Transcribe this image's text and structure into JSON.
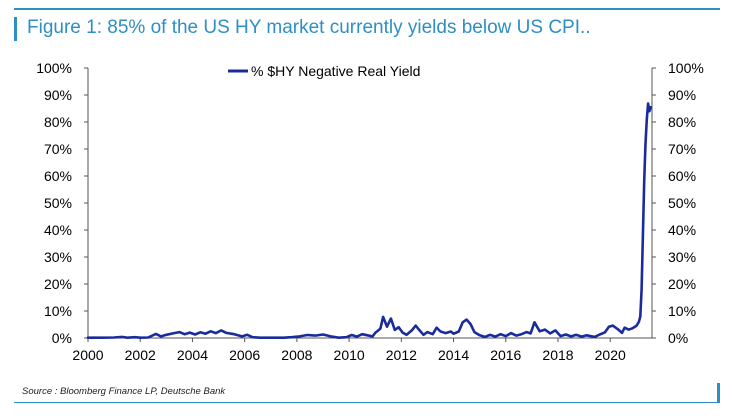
{
  "figure": {
    "title": "Figure 1: 85% of the US HY market currently yields below US CPI..",
    "source": "Source : Bloomberg Finance LP, Deutsche Bank"
  },
  "colors": {
    "accent": "#2e8fc4",
    "series": "#1a2c9c"
  },
  "chart_data": {
    "type": "line",
    "xlim": [
      2000,
      2021.6
    ],
    "ylim": [
      0,
      100
    ],
    "x_ticks": [
      2000,
      2002,
      2004,
      2006,
      2008,
      2010,
      2012,
      2014,
      2016,
      2018,
      2020
    ],
    "x_tick_labels": [
      "2000",
      "2002",
      "2004",
      "2006",
      "2008",
      "2010",
      "2012",
      "2014",
      "2016",
      "2018",
      "2020"
    ],
    "y_ticks": [
      0,
      10,
      20,
      30,
      40,
      50,
      60,
      70,
      80,
      90,
      100
    ],
    "y_tick_labels": [
      "0%",
      "10%",
      "20%",
      "30%",
      "40%",
      "50%",
      "60%",
      "70%",
      "80%",
      "90%",
      "100%"
    ],
    "y_axes": [
      "left",
      "right"
    ],
    "legend_position": "top-center",
    "grid": false,
    "series": [
      {
        "name": "% $HY Negative Real Yield",
        "points": [
          [
            2000.0,
            0.1
          ],
          [
            2000.5,
            0.1
          ],
          [
            2001.0,
            0.2
          ],
          [
            2001.3,
            0.4
          ],
          [
            2001.5,
            0.1
          ],
          [
            2001.8,
            0.3
          ],
          [
            2002.0,
            0.1
          ],
          [
            2002.3,
            0.2
          ],
          [
            2002.6,
            1.5
          ],
          [
            2002.8,
            0.6
          ],
          [
            2003.0,
            1.2
          ],
          [
            2003.3,
            1.8
          ],
          [
            2003.5,
            2.2
          ],
          [
            2003.7,
            1.4
          ],
          [
            2003.9,
            2.0
          ],
          [
            2004.1,
            1.3
          ],
          [
            2004.3,
            2.1
          ],
          [
            2004.5,
            1.6
          ],
          [
            2004.7,
            2.5
          ],
          [
            2004.9,
            1.8
          ],
          [
            2005.1,
            2.8
          ],
          [
            2005.3,
            1.9
          ],
          [
            2005.6,
            1.4
          ],
          [
            2005.9,
            0.6
          ],
          [
            2006.1,
            1.2
          ],
          [
            2006.3,
            0.3
          ],
          [
            2006.6,
            0.1
          ],
          [
            2007.0,
            0.1
          ],
          [
            2007.5,
            0.1
          ],
          [
            2007.8,
            0.3
          ],
          [
            2008.1,
            0.6
          ],
          [
            2008.4,
            1.1
          ],
          [
            2008.7,
            0.9
          ],
          [
            2009.0,
            1.3
          ],
          [
            2009.3,
            0.6
          ],
          [
            2009.6,
            0.1
          ],
          [
            2009.9,
            0.3
          ],
          [
            2010.1,
            1.1
          ],
          [
            2010.3,
            0.5
          ],
          [
            2010.5,
            1.4
          ],
          [
            2010.7,
            1.0
          ],
          [
            2010.9,
            0.6
          ],
          [
            2011.0,
            1.9
          ],
          [
            2011.2,
            3.5
          ],
          [
            2011.3,
            7.8
          ],
          [
            2011.45,
            4.2
          ],
          [
            2011.6,
            7.2
          ],
          [
            2011.75,
            3.0
          ],
          [
            2011.9,
            4.0
          ],
          [
            2012.05,
            2.0
          ],
          [
            2012.2,
            1.2
          ],
          [
            2012.4,
            2.8
          ],
          [
            2012.55,
            4.6
          ],
          [
            2012.7,
            2.8
          ],
          [
            2012.85,
            1.2
          ],
          [
            2013.0,
            2.2
          ],
          [
            2013.2,
            1.4
          ],
          [
            2013.35,
            3.8
          ],
          [
            2013.5,
            2.4
          ],
          [
            2013.7,
            1.8
          ],
          [
            2013.9,
            2.4
          ],
          [
            2014.0,
            1.6
          ],
          [
            2014.2,
            2.4
          ],
          [
            2014.35,
            5.8
          ],
          [
            2014.5,
            6.8
          ],
          [
            2014.65,
            5.2
          ],
          [
            2014.8,
            2.2
          ],
          [
            2015.0,
            1.0
          ],
          [
            2015.2,
            0.4
          ],
          [
            2015.4,
            1.2
          ],
          [
            2015.6,
            0.5
          ],
          [
            2015.8,
            1.4
          ],
          [
            2016.0,
            0.7
          ],
          [
            2016.2,
            1.8
          ],
          [
            2016.4,
            0.9
          ],
          [
            2016.6,
            1.4
          ],
          [
            2016.8,
            2.2
          ],
          [
            2016.95,
            1.7
          ],
          [
            2017.1,
            5.8
          ],
          [
            2017.3,
            2.5
          ],
          [
            2017.5,
            3.1
          ],
          [
            2017.7,
            1.7
          ],
          [
            2017.9,
            2.8
          ],
          [
            2018.1,
            0.7
          ],
          [
            2018.3,
            1.3
          ],
          [
            2018.5,
            0.6
          ],
          [
            2018.7,
            1.2
          ],
          [
            2018.9,
            0.5
          ],
          [
            2019.1,
            1.0
          ],
          [
            2019.4,
            0.4
          ],
          [
            2019.6,
            1.3
          ],
          [
            2019.8,
            2.1
          ],
          [
            2019.95,
            4.2
          ],
          [
            2020.1,
            4.6
          ],
          [
            2020.3,
            3.2
          ],
          [
            2020.45,
            1.9
          ],
          [
            2020.55,
            3.8
          ],
          [
            2020.7,
            3.1
          ],
          [
            2020.85,
            3.6
          ],
          [
            2021.0,
            4.5
          ],
          [
            2021.1,
            6.0
          ],
          [
            2021.15,
            8.0
          ],
          [
            2021.2,
            18.0
          ],
          [
            2021.25,
            38.0
          ],
          [
            2021.3,
            58.0
          ],
          [
            2021.35,
            72.0
          ],
          [
            2021.4,
            81.0
          ],
          [
            2021.45,
            86.8
          ],
          [
            2021.5,
            84.0
          ],
          [
            2021.55,
            85.5
          ]
        ]
      }
    ]
  }
}
